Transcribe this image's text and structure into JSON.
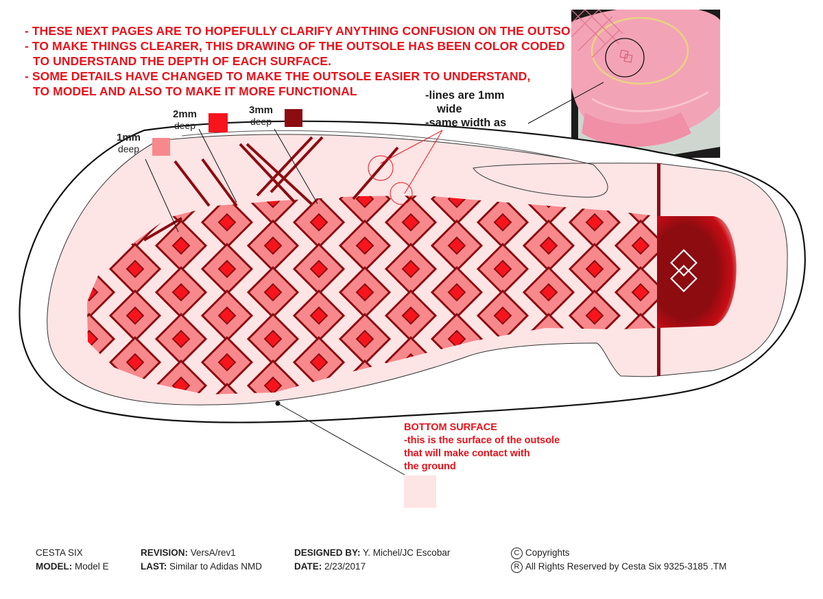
{
  "notes": {
    "line1": "- THESE NEXT PAGES ARE TO HOPEFULLY CLARIFY ANYTHING CONFUSION ON THE OUTSOLE.",
    "line2a": "- TO MAKE THINGS CLEARER, THIS DRAWING OF THE OUTSOLE HAS BEEN COLOR CODED",
    "line2b": "TO UNDERSTAND THE DEPTH OF EACH SURFACE.",
    "line3a": "- SOME DETAILS HAVE CHANGED TO MAKE THE OUTSOLE EASIER TO UNDERSTAND,",
    "line3b": "TO MODEL AND ALSO TO MAKE IT MORE FUNCTIONAL"
  },
  "callout": {
    "line1": "-lines are 1mm",
    "line2": "wide",
    "line3": "-same width as"
  },
  "legend": [
    {
      "depth": "1mm",
      "unit": "deep",
      "color": "#f7888c"
    },
    {
      "depth": "2mm",
      "unit": "deep",
      "color": "#f7141d"
    },
    {
      "depth": "3mm",
      "unit": "deep",
      "color": "#8c0c10"
    }
  ],
  "bottom_surface": {
    "title": "BOTTOM SURFACE",
    "line1": "-this is the surface of the outsole",
    "line2": "that will make contact with",
    "line3": "the ground",
    "color": "#fde4e5"
  },
  "footer": {
    "company": "CESTA SIX",
    "model_label": "MODEL:",
    "model_value": "Model E",
    "revision_label": "REVISION:",
    "revision_value": "VersA/rev1",
    "last_label": "LAST:",
    "last_value": "Similar to Adidas NMD",
    "designed_label": "DESIGNED BY:",
    "designed_value": "Y. Michel/JC Escobar",
    "date_label": "DATE:",
    "date_value": "2/23/2017",
    "copyright_symbol": "C",
    "copyright_text": "Copyrights",
    "registered_symbol": "R",
    "rights_text": "All Rights Reserved by Cesta Six 9325-3185 .TM"
  },
  "colors": {
    "accent_red": "#e8121b",
    "pattern_outline": "#8c0c10",
    "heel_dark": "#8c0c10"
  }
}
